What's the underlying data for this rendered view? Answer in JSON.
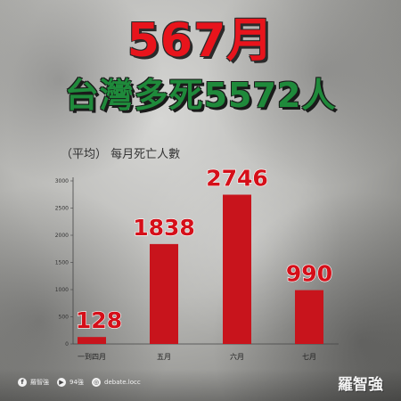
{
  "headline": {
    "title": "567月",
    "subtitle": "台灣多死5572人"
  },
  "chart_caption": "（平均）  每月死亡人數",
  "chart_data": {
    "type": "bar",
    "categories": [
      "一到四月",
      "五月",
      "六月",
      "七月"
    ],
    "values": [
      128,
      1838,
      2746,
      990
    ],
    "data_labels": [
      "128",
      "1838",
      "2746",
      "990"
    ],
    "ylim": [
      0,
      3000
    ],
    "yticks": [
      0,
      500,
      1000,
      1500,
      2000,
      2500,
      3000
    ],
    "grid": false,
    "bar_color": "#c8141c"
  },
  "footer": {
    "facebook": "羅智強",
    "youtube": "94強",
    "instagram": "debate.locc",
    "brand": "羅智強"
  },
  "colors": {
    "title": "#e8141c",
    "subtitle": "#1f8a3b",
    "bars": "#c8141c"
  }
}
